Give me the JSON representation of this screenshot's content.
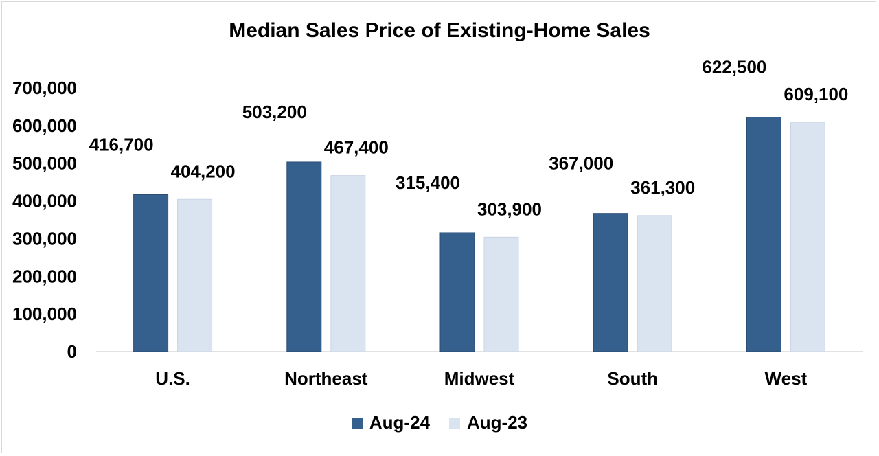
{
  "chart_data": {
    "type": "bar",
    "title": "Median Sales Price of Existing-Home Sales",
    "categories": [
      "U.S.",
      "Northeast",
      "Midwest",
      "South",
      "West"
    ],
    "series": [
      {
        "name": "Aug-24",
        "color": "#355f8d",
        "values": [
          416700,
          503200,
          315400,
          367000,
          622500
        ],
        "labels": [
          "416,700",
          "503,200",
          "315,400",
          "367,000",
          "622,500"
        ]
      },
      {
        "name": "Aug-23",
        "color": "#dae3f0",
        "values": [
          404200,
          467400,
          303900,
          361300,
          609100
        ],
        "labels": [
          "404,200",
          "467,400",
          "303,900",
          "361,300",
          "609,100"
        ]
      }
    ],
    "yticks": [
      0,
      100000,
      200000,
      300000,
      400000,
      500000,
      600000,
      700000
    ],
    "ytick_labels": [
      "0",
      "100,000",
      "200,000",
      "300,000",
      "400,000",
      "500,000",
      "600,000",
      "700,000"
    ],
    "ylim": [
      0,
      700000
    ],
    "xlabel": "",
    "ylabel": "",
    "legend_position": "bottom"
  }
}
